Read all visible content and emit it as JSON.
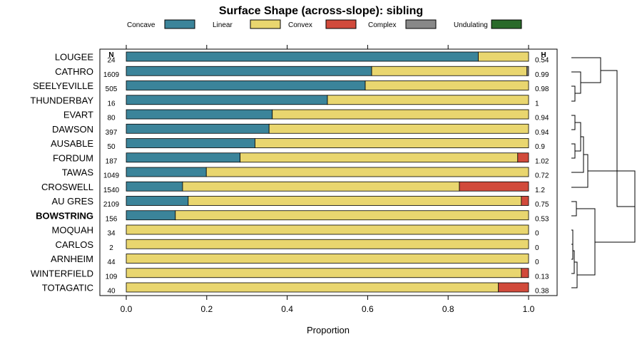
{
  "chart_data": {
    "type": "bar",
    "stacked": true,
    "orientation": "horizontal",
    "title": "Surface Shape (across-slope): sibling",
    "xlabel": "Proportion",
    "xlim": [
      0,
      1
    ],
    "xticks": [
      "0.0",
      "0.2",
      "0.4",
      "0.6",
      "0.8",
      "1.0"
    ],
    "xtick_values": [
      0,
      0.2,
      0.4,
      0.6,
      0.8,
      1.0
    ],
    "legend_position": "top",
    "n_header": "N",
    "h_header": "H",
    "categories": [
      "LOUGEE",
      "CATHRO",
      "SEELYEVILLE",
      "THUNDERBAY",
      "EVART",
      "DAWSON",
      "AUSABLE",
      "FORDUM",
      "TAWAS",
      "CROSWELL",
      "AU GRES",
      "BOWSTRING",
      "MOQUAH",
      "CARLOS",
      "ARNHEIM",
      "WINTERFIELD",
      "TOTAGATIC"
    ],
    "highlight": "BOWSTRING",
    "n": [
      "24",
      "1609",
      "505",
      "16",
      "80",
      "397",
      "50",
      "187",
      "1049",
      "1540",
      "2109",
      "156",
      "34",
      "2",
      "44",
      "109",
      "40"
    ],
    "h": [
      "0.54",
      "0.99",
      "0.98",
      "1",
      "0.94",
      "0.94",
      "0.9",
      "1.02",
      "0.72",
      "1.2",
      "0.75",
      "0.53",
      "0",
      "0",
      "0",
      "0.13",
      "0.38"
    ],
    "series": [
      {
        "name": "Concave",
        "color": "#3B849A",
        "values": [
          0.875,
          0.61,
          0.594,
          0.5,
          0.363,
          0.355,
          0.32,
          0.283,
          0.199,
          0.14,
          0.154,
          0.122,
          0,
          0,
          0,
          0,
          0
        ]
      },
      {
        "name": "Linear",
        "color": "#E9D66F",
        "values": [
          0.125,
          0.386,
          0.406,
          0.5,
          0.637,
          0.645,
          0.68,
          0.69,
          0.801,
          0.688,
          0.828,
          0.878,
          1,
          1,
          1,
          0.982,
          0.925
        ]
      },
      {
        "name": "Convex",
        "color": "#D14A3B",
        "values": [
          0,
          0,
          0,
          0,
          0,
          0,
          0,
          0.027,
          0,
          0.172,
          0.018,
          0,
          0,
          0,
          0,
          0.018,
          0.075
        ]
      },
      {
        "name": "Complex",
        "color": "#888888",
        "values": [
          0,
          0.004,
          0,
          0,
          0,
          0,
          0,
          0,
          0,
          0,
          0,
          0,
          0,
          0,
          0,
          0,
          0
        ]
      },
      {
        "name": "Undulating",
        "color": "#2A6A2A",
        "values": [
          0,
          0,
          0,
          0,
          0,
          0,
          0,
          0,
          0,
          0,
          0,
          0,
          0,
          0,
          0,
          0,
          0
        ]
      }
    ]
  }
}
